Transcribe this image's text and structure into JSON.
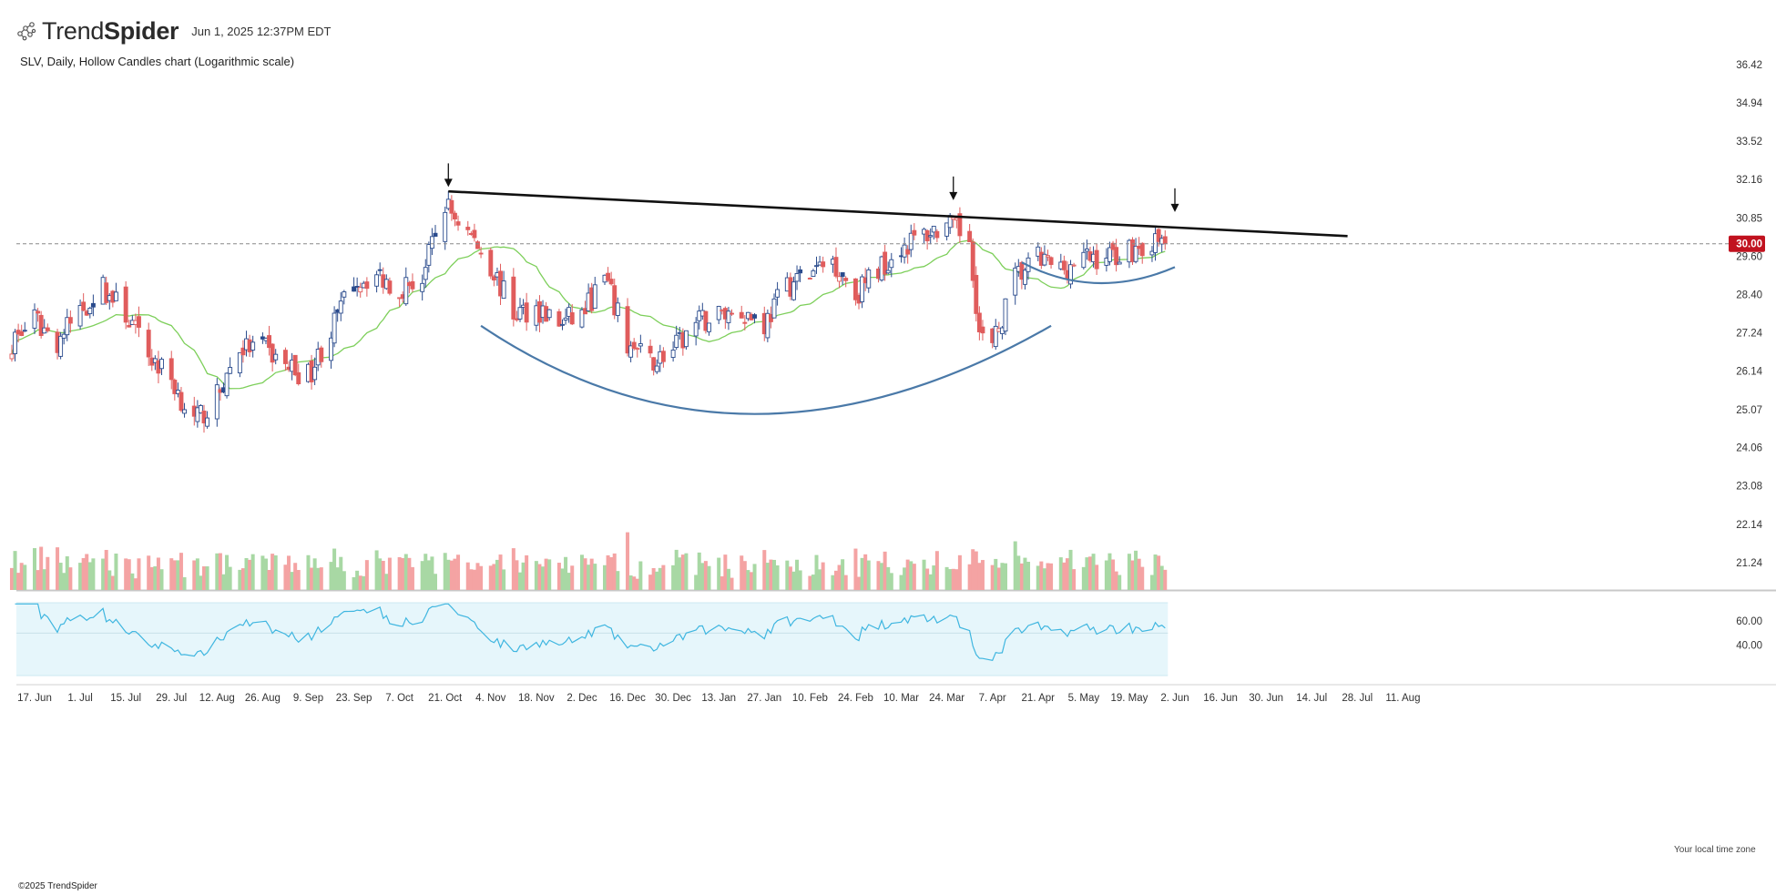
{
  "header": {
    "brand_light": "Trend",
    "brand_bold_wordmark": "TrendSpider",
    "brand_suffix": "Spider",
    "timestamp": "Jun 1, 2025 12:37PM EDT",
    "subtitle": "SLV, Daily, Hollow Candles chart (Logarithmic scale)",
    "logo_icon": "trendspider-network-icon"
  },
  "footer": {
    "copyright": "©2025 TrendSpider",
    "timezone_note": "Your local time zone"
  },
  "colors": {
    "up": "#2a4b8d",
    "down": "#e05c5c",
    "ma": "#7dcf5a",
    "trendline": "#111111",
    "arc": "#4a79a8",
    "vol_up": "#a8d8a4",
    "vol_down": "#f4a3a3",
    "rsi_line": "#3fb6e0",
    "rsi_band": "#e6f6fb",
    "price_tag": "#c1121f"
  },
  "chart_data": {
    "type": "candlestick",
    "symbol": "SLV",
    "interval": "Daily",
    "style": "Hollow Candles",
    "scale": "log",
    "current_price": 30.0,
    "current_price_label": "30.00",
    "y_ticks": [
      "36.42",
      "34.94",
      "33.52",
      "32.16",
      "30.85",
      "29.60",
      "28.40",
      "27.24",
      "26.14",
      "25.07",
      "24.06",
      "23.08",
      "22.14",
      "21.24"
    ],
    "x_ticks": [
      "17. Jun",
      "1. Jul",
      "15. Jul",
      "29. Jul",
      "12. Aug",
      "26. Aug",
      "9. Sep",
      "23. Sep",
      "7. Oct",
      "21. Oct",
      "4. Nov",
      "18. Nov",
      "2. Dec",
      "16. Dec",
      "30. Dec",
      "13. Jan",
      "27. Jan",
      "10. Feb",
      "24. Feb",
      "10. Mar",
      "24. Mar",
      "7. Apr",
      "21. Apr",
      "5. May",
      "19. May",
      "2. Jun",
      "16. Jun",
      "30. Jun",
      "14. Jul",
      "28. Jul",
      "11. Aug"
    ],
    "close_anchors": [
      [
        "2024-06-10",
        27.0
      ],
      [
        "2024-06-17",
        27.6
      ],
      [
        "2024-06-24",
        27.0
      ],
      [
        "2024-07-01",
        27.9
      ],
      [
        "2024-07-08",
        28.6
      ],
      [
        "2024-07-15",
        27.8
      ],
      [
        "2024-07-22",
        26.6
      ],
      [
        "2024-07-29",
        25.9
      ],
      [
        "2024-08-05",
        24.7
      ],
      [
        "2024-08-12",
        25.4
      ],
      [
        "2024-08-19",
        26.8
      ],
      [
        "2024-08-26",
        26.8
      ],
      [
        "2024-09-02",
        26.3
      ],
      [
        "2024-09-09",
        26.0
      ],
      [
        "2024-09-16",
        27.3
      ],
      [
        "2024-09-23",
        28.8
      ],
      [
        "2024-09-30",
        29.0
      ],
      [
        "2024-10-07",
        28.6
      ],
      [
        "2024-10-14",
        28.9
      ],
      [
        "2024-10-21",
        31.3
      ],
      [
        "2024-10-28",
        30.4
      ],
      [
        "2024-11-04",
        29.3
      ],
      [
        "2024-11-11",
        27.8
      ],
      [
        "2024-11-18",
        28.0
      ],
      [
        "2024-11-25",
        27.5
      ],
      [
        "2024-12-02",
        27.8
      ],
      [
        "2024-12-09",
        28.9
      ],
      [
        "2024-12-16",
        26.9
      ],
      [
        "2024-12-23",
        26.4
      ],
      [
        "2024-12-30",
        26.7
      ],
      [
        "2025-01-06",
        27.5
      ],
      [
        "2025-01-13",
        27.8
      ],
      [
        "2025-01-20",
        27.9
      ],
      [
        "2025-01-27",
        27.5
      ],
      [
        "2025-02-03",
        28.7
      ],
      [
        "2025-02-10",
        29.0
      ],
      [
        "2025-02-17",
        29.5
      ],
      [
        "2025-02-24",
        28.4
      ],
      [
        "2025-03-03",
        29.2
      ],
      [
        "2025-03-10",
        29.9
      ],
      [
        "2025-03-17",
        30.3
      ],
      [
        "2025-03-24",
        30.6
      ],
      [
        "2025-03-31",
        30.2
      ],
      [
        "2025-04-03",
        27.2
      ],
      [
        "2025-04-07",
        26.8
      ],
      [
        "2025-04-14",
        28.9
      ],
      [
        "2025-04-21",
        29.5
      ],
      [
        "2025-04-28",
        29.2
      ],
      [
        "2025-05-05",
        29.5
      ],
      [
        "2025-05-12",
        29.6
      ],
      [
        "2025-05-19",
        29.8
      ],
      [
        "2025-05-26",
        30.0
      ],
      [
        "2025-05-30",
        30.0
      ]
    ],
    "trendline": {
      "from": [
        "2024-10-22",
        31.75
      ],
      "to": [
        "2025-07-25",
        30.25
      ]
    },
    "down_arrows": [
      [
        "2024-10-22",
        31.9
      ],
      [
        "2025-03-26",
        31.45
      ],
      [
        "2025-06-02",
        31.05
      ]
    ],
    "cup_arc": {
      "start": [
        "2024-11-01",
        27.45
      ],
      "bottom": [
        "2025-01-24",
        24.95
      ],
      "end": [
        "2025-04-25",
        27.45
      ]
    },
    "handle_arc": {
      "start": [
        "2025-04-16",
        29.4
      ],
      "bottom": [
        "2025-05-09",
        28.75
      ],
      "end": [
        "2025-06-02",
        29.25
      ]
    },
    "rsi_levels": [
      "60.00",
      "40.00"
    ]
  }
}
